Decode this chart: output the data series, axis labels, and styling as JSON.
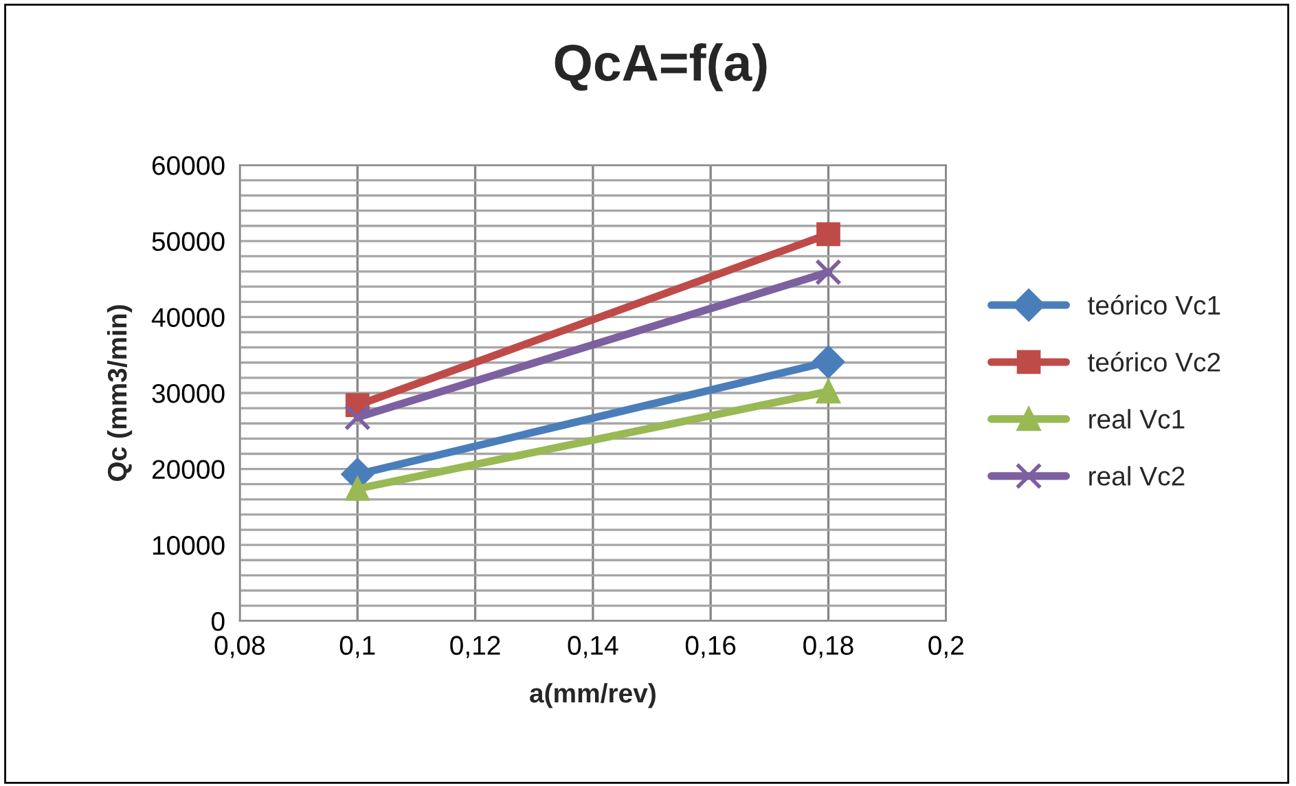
{
  "chart_data": {
    "type": "line",
    "title": "QcA=f(a)",
    "xlabel": "a(mm/rev)",
    "ylabel": "Qc (mm3/min)",
    "x": [
      0.1,
      0.18
    ],
    "series": [
      {
        "name": "teórico Vc1",
        "color": "#4a7ebb",
        "values": [
          19300,
          34100
        ],
        "marker": "diamond"
      },
      {
        "name": "teórico Vc2",
        "color": "#be4b48",
        "values": [
          28400,
          50900
        ],
        "marker": "square"
      },
      {
        "name": "real Vc1",
        "color": "#98b954",
        "values": [
          17400,
          30200
        ],
        "marker": "triangle"
      },
      {
        "name": "real Vc2",
        "color": "#7d60a0",
        "values": [
          26800,
          45900
        ],
        "marker": "cross"
      }
    ],
    "xlim": [
      0.08,
      0.2
    ],
    "xticks": [
      {
        "value": 0.08,
        "label": "0,08"
      },
      {
        "value": 0.1,
        "label": "0,1"
      },
      {
        "value": 0.12,
        "label": "0,12"
      },
      {
        "value": 0.14,
        "label": "0,14"
      },
      {
        "value": 0.16,
        "label": "0,16"
      },
      {
        "value": 0.18,
        "label": "0,18"
      },
      {
        "value": 0.2,
        "label": "0,2"
      }
    ],
    "ylim": [
      0,
      60000
    ],
    "yticks": [
      0,
      10000,
      20000,
      30000,
      40000,
      50000,
      60000
    ],
    "grid": true,
    "legend": "right",
    "line_style": "solid"
  }
}
